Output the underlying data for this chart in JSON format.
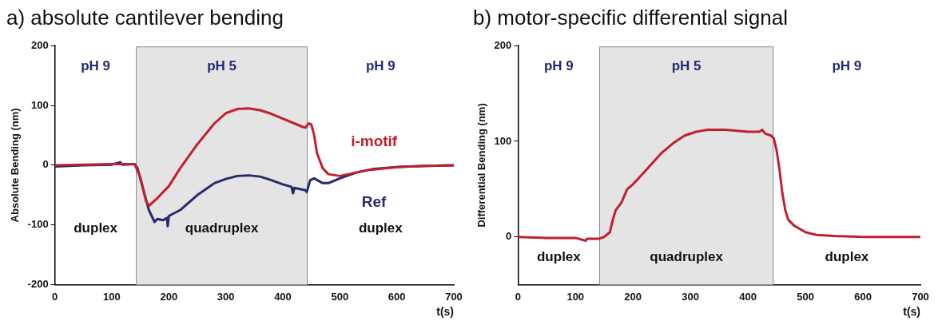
{
  "chart_data": [
    {
      "type": "line",
      "title": "a) absolute cantilever bending",
      "xlabel": "t(s)",
      "ylabel": "Absolute Bending (nm)",
      "xlim": [
        0,
        700
      ],
      "xticks": [
        0,
        100,
        200,
        300,
        400,
        500,
        600,
        700
      ],
      "ylim": [
        -200,
        200
      ],
      "yticks": [
        -200,
        -100,
        0,
        100,
        200
      ],
      "grid": false,
      "legend": false,
      "marker": "none",
      "line_style": "solid",
      "bands": [
        {
          "axis": "x",
          "from": 143,
          "to": 443,
          "color": "#e4e4e4"
        }
      ],
      "annotations": [
        "pH 9",
        "pH 5",
        "pH 9",
        "duplex",
        "quadruplex",
        "duplex"
      ],
      "series": [
        {
          "name": "i-motif",
          "color": "#c0202e",
          "x": [
            0,
            50,
            100,
            140,
            150,
            160,
            165,
            180,
            200,
            220,
            250,
            280,
            300,
            320,
            340,
            360,
            380,
            400,
            420,
            435,
            440,
            445,
            450,
            455,
            460,
            470,
            480,
            500,
            520,
            550,
            600,
            650,
            700
          ],
          "values": [
            0,
            1,
            2,
            2,
            -20,
            -60,
            -68,
            -55,
            -35,
            -5,
            35,
            70,
            87,
            94,
            95,
            92,
            86,
            78,
            70,
            64,
            63,
            70,
            68,
            50,
            20,
            -5,
            -15,
            -18,
            -14,
            -8,
            -3,
            -1,
            0
          ]
        },
        {
          "name": "Ref",
          "color": "#252a6e",
          "x": [
            0,
            50,
            100,
            115,
            118,
            140,
            145,
            155,
            165,
            175,
            180,
            190,
            197,
            198,
            200,
            220,
            250,
            280,
            300,
            320,
            340,
            360,
            380,
            400,
            415,
            418,
            420,
            440,
            442,
            448,
            455,
            470,
            480,
            500,
            530,
            560,
            600,
            650,
            700
          ],
          "values": [
            -2,
            0,
            1,
            5,
            1,
            2,
            -5,
            -40,
            -75,
            -95,
            -90,
            -92,
            -88,
            -102,
            -85,
            -75,
            -50,
            -30,
            -23,
            -18,
            -17,
            -19,
            -25,
            -32,
            -36,
            -47,
            -38,
            -42,
            -45,
            -25,
            -22,
            -30,
            -30,
            -22,
            -12,
            -6,
            -3,
            -1,
            0
          ]
        }
      ]
    },
    {
      "type": "line",
      "title": "b) motor-specific differential signal",
      "xlabel": "t(s)",
      "ylabel": "Differential Bending (nm)",
      "xlim": [
        0,
        700
      ],
      "xticks": [
        0,
        100,
        200,
        300,
        400,
        500,
        600,
        700
      ],
      "ylim": [
        -50,
        200
      ],
      "yticks": [
        0,
        100,
        200
      ],
      "grid": false,
      "legend": false,
      "marker": "none",
      "line_style": "solid",
      "bands": [
        {
          "axis": "x",
          "from": 142,
          "to": 444,
          "color": "#e4e4e4"
        }
      ],
      "annotations": [
        "pH 9",
        "pH 5",
        "pH 9",
        "duplex",
        "quadruplex",
        "duplex"
      ],
      "series": [
        {
          "color": "#c0202e",
          "x": [
            0,
            50,
            100,
            118,
            120,
            140,
            150,
            160,
            165,
            170,
            180,
            190,
            200,
            220,
            250,
            270,
            290,
            310,
            330,
            360,
            400,
            420,
            425,
            430,
            440,
            445,
            450,
            455,
            460,
            465,
            470,
            480,
            500,
            520,
            550,
            600,
            650,
            700
          ],
          "values": [
            0,
            -1,
            -1,
            -4,
            -2,
            -2,
            0,
            5,
            18,
            28,
            36,
            50,
            55,
            68,
            88,
            98,
            106,
            110,
            112,
            112,
            110,
            110,
            112,
            108,
            106,
            103,
            90,
            70,
            45,
            28,
            18,
            12,
            5,
            2,
            1,
            0,
            0,
            0
          ]
        }
      ]
    }
  ]
}
